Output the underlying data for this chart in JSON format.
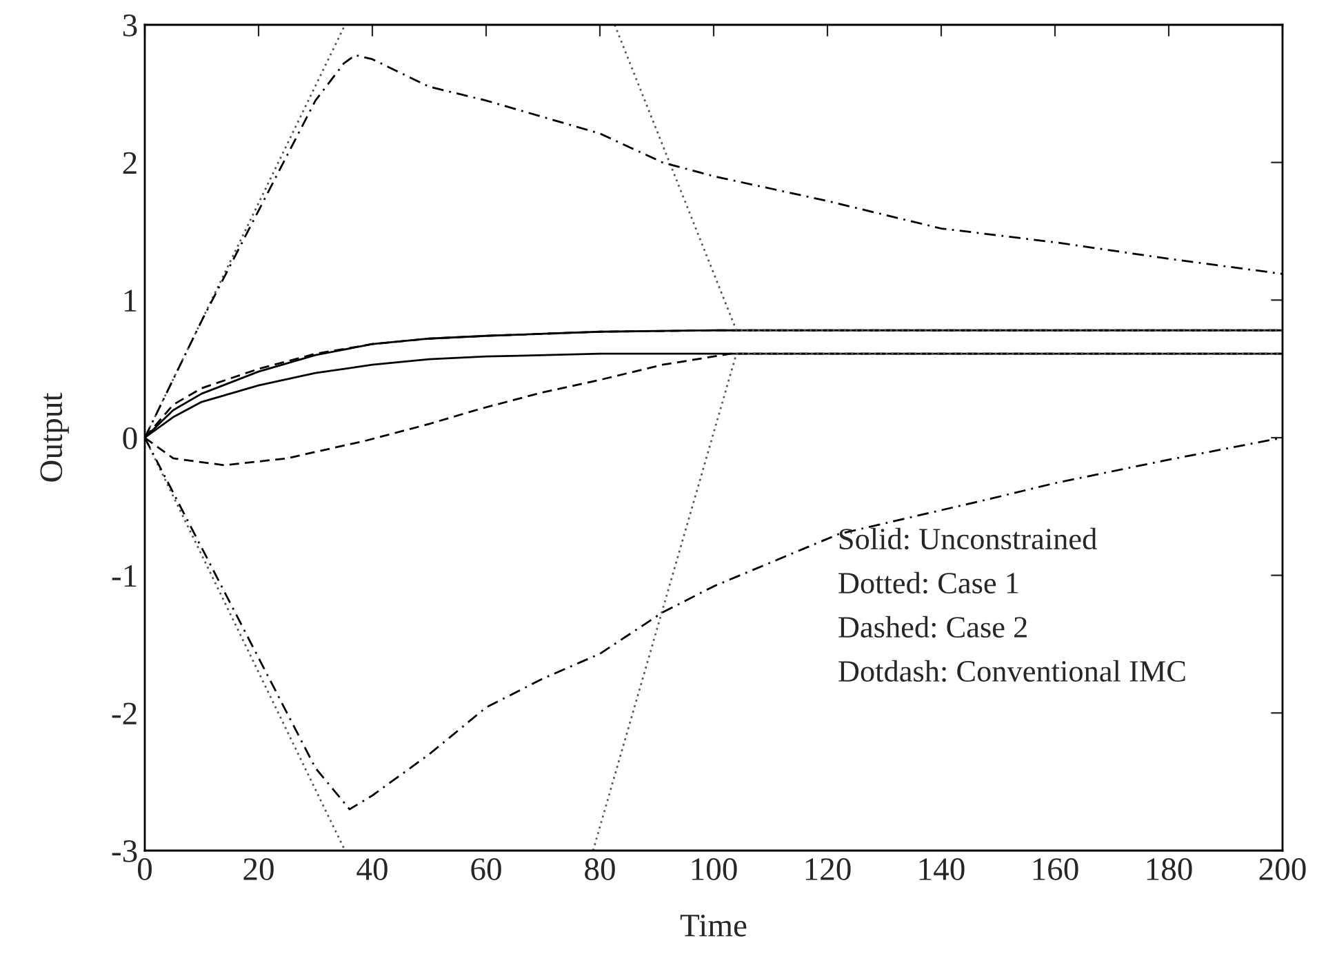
{
  "chart_data": {
    "type": "line",
    "xlabel": "Time",
    "ylabel": "Output",
    "xlim": [
      0,
      200
    ],
    "ylim": [
      -3,
      3
    ],
    "xticks": [
      0,
      20,
      40,
      60,
      80,
      100,
      120,
      140,
      160,
      180,
      200
    ],
    "yticks": [
      -3,
      -2,
      -1,
      0,
      1,
      2,
      3
    ],
    "grid": false,
    "annotations": [
      "Solid: Unconstrained",
      "Dotted: Case 1",
      "Dashed: Case 2",
      "Dotdash: Conventional IMC"
    ],
    "series": [
      {
        "color": "#000000",
        "line_style": "solid",
        "x": [
          0,
          5,
          10,
          20,
          30,
          40,
          50,
          60,
          80,
          100,
          200
        ],
        "values": [
          0,
          0.2,
          0.32,
          0.48,
          0.6,
          0.68,
          0.72,
          0.74,
          0.77,
          0.78,
          0.78
        ]
      },
      {
        "color": "#000000",
        "line_style": "solid",
        "x": [
          0,
          5,
          10,
          20,
          30,
          40,
          50,
          60,
          80,
          100,
          200
        ],
        "values": [
          0,
          0.15,
          0.26,
          0.38,
          0.47,
          0.53,
          0.57,
          0.59,
          0.61,
          0.61,
          0.61
        ]
      },
      {
        "color": "#000000",
        "line_style": "dashed",
        "x": [
          0,
          5,
          10,
          20,
          30,
          40,
          50,
          60,
          80,
          100,
          200
        ],
        "values": [
          0,
          0.24,
          0.36,
          0.5,
          0.61,
          0.68,
          0.72,
          0.74,
          0.77,
          0.78,
          0.78
        ]
      },
      {
        "color": "#000000",
        "line_style": "dashed",
        "x": [
          0,
          5,
          14,
          25,
          39,
          50,
          59,
          70,
          80,
          91,
          103,
          200
        ],
        "values": [
          0,
          -0.15,
          -0.2,
          -0.15,
          -0.02,
          0.1,
          0.21,
          0.33,
          0.42,
          0.53,
          0.61,
          0.61
        ]
      },
      {
        "color": "#555555",
        "line_style": "dotted",
        "x": [
          0,
          35.2,
          60,
          82.6,
          104,
          200
        ],
        "values": [
          0,
          3,
          null,
          3,
          0.78,
          0.78
        ]
      },
      {
        "color": "#555555",
        "line_style": "dotted",
        "x": [
          0,
          35.2,
          60,
          78.8,
          104,
          200
        ],
        "values": [
          0,
          -3,
          null,
          -3,
          0.61,
          0.61
        ]
      },
      {
        "color": "#000000",
        "line_style": "dashdot",
        "x": [
          0,
          10,
          20,
          30,
          35,
          37,
          40,
          50,
          60,
          80,
          91,
          100,
          120,
          140,
          160,
          180,
          200
        ],
        "values": [
          0,
          0.85,
          1.65,
          2.45,
          2.72,
          2.78,
          2.75,
          2.55,
          2.45,
          2.21,
          2.0,
          1.9,
          1.72,
          1.52,
          1.42,
          1.3,
          1.19
        ]
      },
      {
        "color": "#000000",
        "line_style": "dashdot",
        "x": [
          0,
          10,
          20,
          30,
          36,
          40,
          50,
          60,
          70,
          80,
          91,
          100,
          122,
          149,
          160,
          180,
          200
        ],
        "values": [
          0,
          -0.8,
          -1.6,
          -2.4,
          -2.7,
          -2.6,
          -2.3,
          -1.96,
          -1.75,
          -1.57,
          -1.27,
          -1.08,
          -0.7,
          -0.44,
          -0.33,
          -0.16,
          0
        ]
      }
    ]
  }
}
